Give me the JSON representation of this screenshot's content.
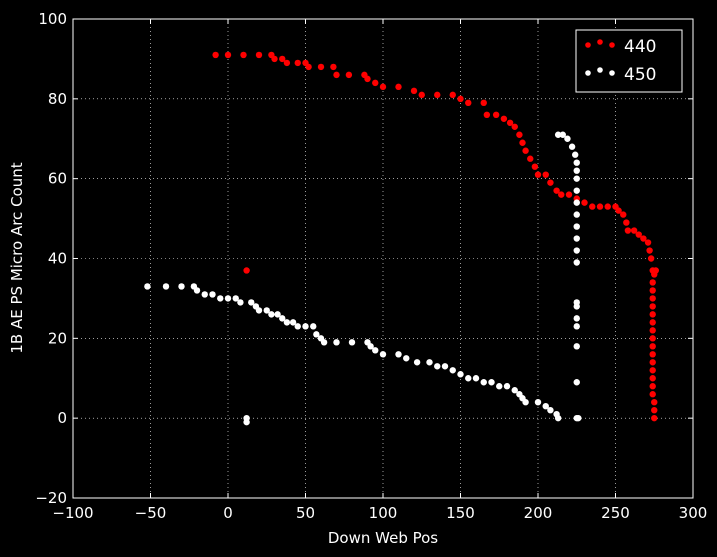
{
  "chart_data": {
    "type": "scatter",
    "xlabel": "Down Web Pos",
    "ylabel": "1B AE PS Micro Arc Count",
    "xlim": [
      -100,
      300
    ],
    "ylim": [
      -20,
      100
    ],
    "xticks": [
      -100,
      -50,
      0,
      50,
      100,
      150,
      200,
      250,
      300
    ],
    "yticks": [
      -20,
      0,
      20,
      40,
      60,
      80,
      100
    ],
    "xtick_labels": [
      "−100",
      "−50",
      "0",
      "50",
      "100",
      "150",
      "200",
      "250",
      "300"
    ],
    "ytick_labels": [
      "−20",
      "0",
      "20",
      "40",
      "60",
      "80",
      "100"
    ],
    "grid": true,
    "legend_position": "top-right",
    "background": "#000000",
    "axis_color": "#ffffff",
    "series": [
      {
        "name": "440",
        "color": "#ff0000",
        "points": [
          [
            -8,
            91
          ],
          [
            0,
            91
          ],
          [
            10,
            91
          ],
          [
            20,
            91
          ],
          [
            28,
            91
          ],
          [
            30,
            90
          ],
          [
            35,
            90
          ],
          [
            38,
            89
          ],
          [
            45,
            89
          ],
          [
            50,
            89
          ],
          [
            52,
            88
          ],
          [
            60,
            88
          ],
          [
            68,
            88
          ],
          [
            70,
            86
          ],
          [
            78,
            86
          ],
          [
            88,
            86
          ],
          [
            90,
            85
          ],
          [
            95,
            84
          ],
          [
            100,
            83
          ],
          [
            110,
            83
          ],
          [
            120,
            82
          ],
          [
            125,
            81
          ],
          [
            135,
            81
          ],
          [
            145,
            81
          ],
          [
            150,
            80
          ],
          [
            155,
            79
          ],
          [
            165,
            79
          ],
          [
            167,
            76
          ],
          [
            173,
            76
          ],
          [
            178,
            75
          ],
          [
            182,
            74
          ],
          [
            185,
            73
          ],
          [
            188,
            71
          ],
          [
            190,
            69
          ],
          [
            192,
            67
          ],
          [
            195,
            65
          ],
          [
            198,
            63
          ],
          [
            200,
            61
          ],
          [
            205,
            61
          ],
          [
            208,
            59
          ],
          [
            212,
            57
          ],
          [
            215,
            56
          ],
          [
            220,
            56
          ],
          [
            225,
            55
          ],
          [
            230,
            54
          ],
          [
            235,
            53
          ],
          [
            240,
            53
          ],
          [
            245,
            53
          ],
          [
            250,
            53
          ],
          [
            252,
            52
          ],
          [
            255,
            51
          ],
          [
            257,
            49
          ],
          [
            258,
            47
          ],
          [
            262,
            47
          ],
          [
            265,
            46
          ],
          [
            268,
            45
          ],
          [
            271,
            44
          ],
          [
            272,
            42
          ],
          [
            273,
            40
          ],
          [
            274,
            37
          ],
          [
            275,
            36
          ],
          [
            274,
            34
          ],
          [
            274,
            32
          ],
          [
            274,
            30
          ],
          [
            274,
            28
          ],
          [
            274,
            26
          ],
          [
            274,
            24
          ],
          [
            274,
            22
          ],
          [
            274,
            20
          ],
          [
            274,
            18
          ],
          [
            274,
            16
          ],
          [
            274,
            14
          ],
          [
            274,
            12
          ],
          [
            274,
            10
          ],
          [
            274,
            8
          ],
          [
            274,
            6
          ],
          [
            275,
            4
          ],
          [
            275,
            2
          ],
          [
            275,
            0
          ],
          [
            276,
            37
          ],
          [
            12,
            37
          ]
        ]
      },
      {
        "name": "450",
        "color": "#ffffff",
        "points": [
          [
            -52,
            33
          ],
          [
            -40,
            33
          ],
          [
            -30,
            33
          ],
          [
            -22,
            33
          ],
          [
            -20,
            32
          ],
          [
            -15,
            31
          ],
          [
            -10,
            31
          ],
          [
            -5,
            30
          ],
          [
            0,
            30
          ],
          [
            5,
            30
          ],
          [
            8,
            29
          ],
          [
            15,
            29
          ],
          [
            18,
            28
          ],
          [
            20,
            27
          ],
          [
            25,
            27
          ],
          [
            28,
            26
          ],
          [
            32,
            26
          ],
          [
            35,
            25
          ],
          [
            38,
            24
          ],
          [
            42,
            24
          ],
          [
            45,
            23
          ],
          [
            50,
            23
          ],
          [
            55,
            23
          ],
          [
            57,
            21
          ],
          [
            60,
            20
          ],
          [
            62,
            19
          ],
          [
            70,
            19
          ],
          [
            80,
            19
          ],
          [
            90,
            19
          ],
          [
            92,
            18
          ],
          [
            95,
            17
          ],
          [
            100,
            16
          ],
          [
            110,
            16
          ],
          [
            115,
            15
          ],
          [
            122,
            14
          ],
          [
            130,
            14
          ],
          [
            135,
            13
          ],
          [
            140,
            13
          ],
          [
            145,
            12
          ],
          [
            150,
            11
          ],
          [
            155,
            10
          ],
          [
            160,
            10
          ],
          [
            165,
            9
          ],
          [
            170,
            9
          ],
          [
            175,
            8
          ],
          [
            180,
            8
          ],
          [
            185,
            7
          ],
          [
            188,
            6
          ],
          [
            190,
            5
          ],
          [
            192,
            4
          ],
          [
            200,
            4
          ],
          [
            205,
            3
          ],
          [
            208,
            2
          ],
          [
            212,
            1
          ],
          [
            213,
            0
          ],
          [
            213,
            71
          ],
          [
            216,
            71
          ],
          [
            219,
            70
          ],
          [
            222,
            68
          ],
          [
            224,
            66
          ],
          [
            225,
            64
          ],
          [
            225,
            62
          ],
          [
            225,
            60
          ],
          [
            225,
            57
          ],
          [
            225,
            54
          ],
          [
            225,
            51
          ],
          [
            225,
            48
          ],
          [
            225,
            45
          ],
          [
            225,
            42
          ],
          [
            225,
            39
          ],
          [
            225,
            29
          ],
          [
            225,
            28
          ],
          [
            225,
            25
          ],
          [
            225,
            23
          ],
          [
            225,
            18
          ],
          [
            225,
            9
          ],
          [
            225,
            0
          ],
          [
            226,
            0
          ],
          [
            12,
            0
          ],
          [
            12,
            -1
          ]
        ]
      }
    ]
  }
}
